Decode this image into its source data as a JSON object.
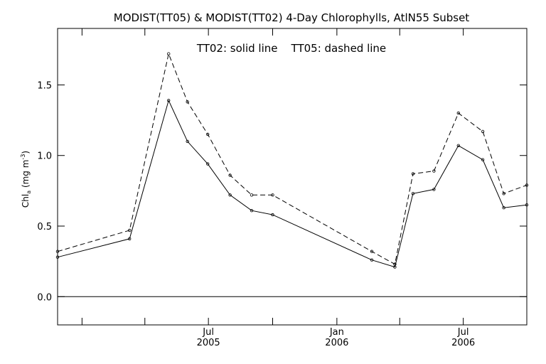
{
  "chart_data": {
    "type": "line",
    "title": "MODIST(TT05) & MODIST(TT02) 4-Day Chlorophylls, AtlN55 Subset",
    "annotation": "TT02: solid line    TT05: dashed line",
    "ylabel": {
      "main": "Chl",
      "sub": "a",
      "units_open": " (mg m",
      "units_sup": "-3",
      "units_close": ")"
    },
    "xlim": [
      "2004-11-27",
      "2006-09-30"
    ],
    "ylim": [
      -0.2,
      1.9
    ],
    "yticks": [
      0.0,
      0.5,
      1.0,
      1.5
    ],
    "ytick_labels": [
      "0.0",
      "0.5",
      "1.0",
      "1.5"
    ],
    "xticks": [
      {
        "date": "2005-01-01",
        "label": "",
        "sublabel": ""
      },
      {
        "date": "2005-04-01",
        "label": "",
        "sublabel": ""
      },
      {
        "date": "2005-07-01",
        "label": "Jul",
        "sublabel": "2005"
      },
      {
        "date": "2005-10-01",
        "label": "",
        "sublabel": ""
      },
      {
        "date": "2006-01-01",
        "label": "Jan",
        "sublabel": "2006"
      },
      {
        "date": "2006-04-01",
        "label": "",
        "sublabel": ""
      },
      {
        "date": "2006-07-01",
        "label": "Jul",
        "sublabel": "2006"
      }
    ],
    "zero_line": 0.0,
    "grid": false,
    "series": [
      {
        "style": "solid",
        "x": [
          "2004-11-27",
          "2005-03-10",
          "2005-05-05",
          "2005-06-01",
          "2005-06-30",
          "2005-08-01",
          "2005-09-01",
          "2005-10-01",
          "2006-02-20",
          "2006-03-25",
          "2006-04-20",
          "2006-05-20",
          "2006-06-24",
          "2006-07-29",
          "2006-08-28",
          "2006-09-30"
        ],
        "values": [
          0.28,
          0.41,
          1.39,
          1.1,
          0.94,
          0.72,
          0.61,
          0.58,
          0.26,
          0.21,
          0.73,
          0.76,
          1.07,
          0.97,
          0.63,
          0.65
        ]
      },
      {
        "style": "dashed",
        "x": [
          "2004-11-27",
          "2005-03-10",
          "2005-05-05",
          "2005-06-01",
          "2005-06-30",
          "2005-08-01",
          "2005-09-01",
          "2005-10-01",
          "2006-02-20",
          "2006-03-25",
          "2006-04-20",
          "2006-05-20",
          "2006-06-24",
          "2006-07-29",
          "2006-08-28",
          "2006-09-30"
        ],
        "values": [
          0.32,
          0.47,
          1.72,
          1.38,
          1.15,
          0.86,
          0.72,
          0.72,
          0.32,
          0.23,
          0.87,
          0.89,
          1.3,
          1.17,
          0.73,
          0.79
        ]
      }
    ]
  }
}
